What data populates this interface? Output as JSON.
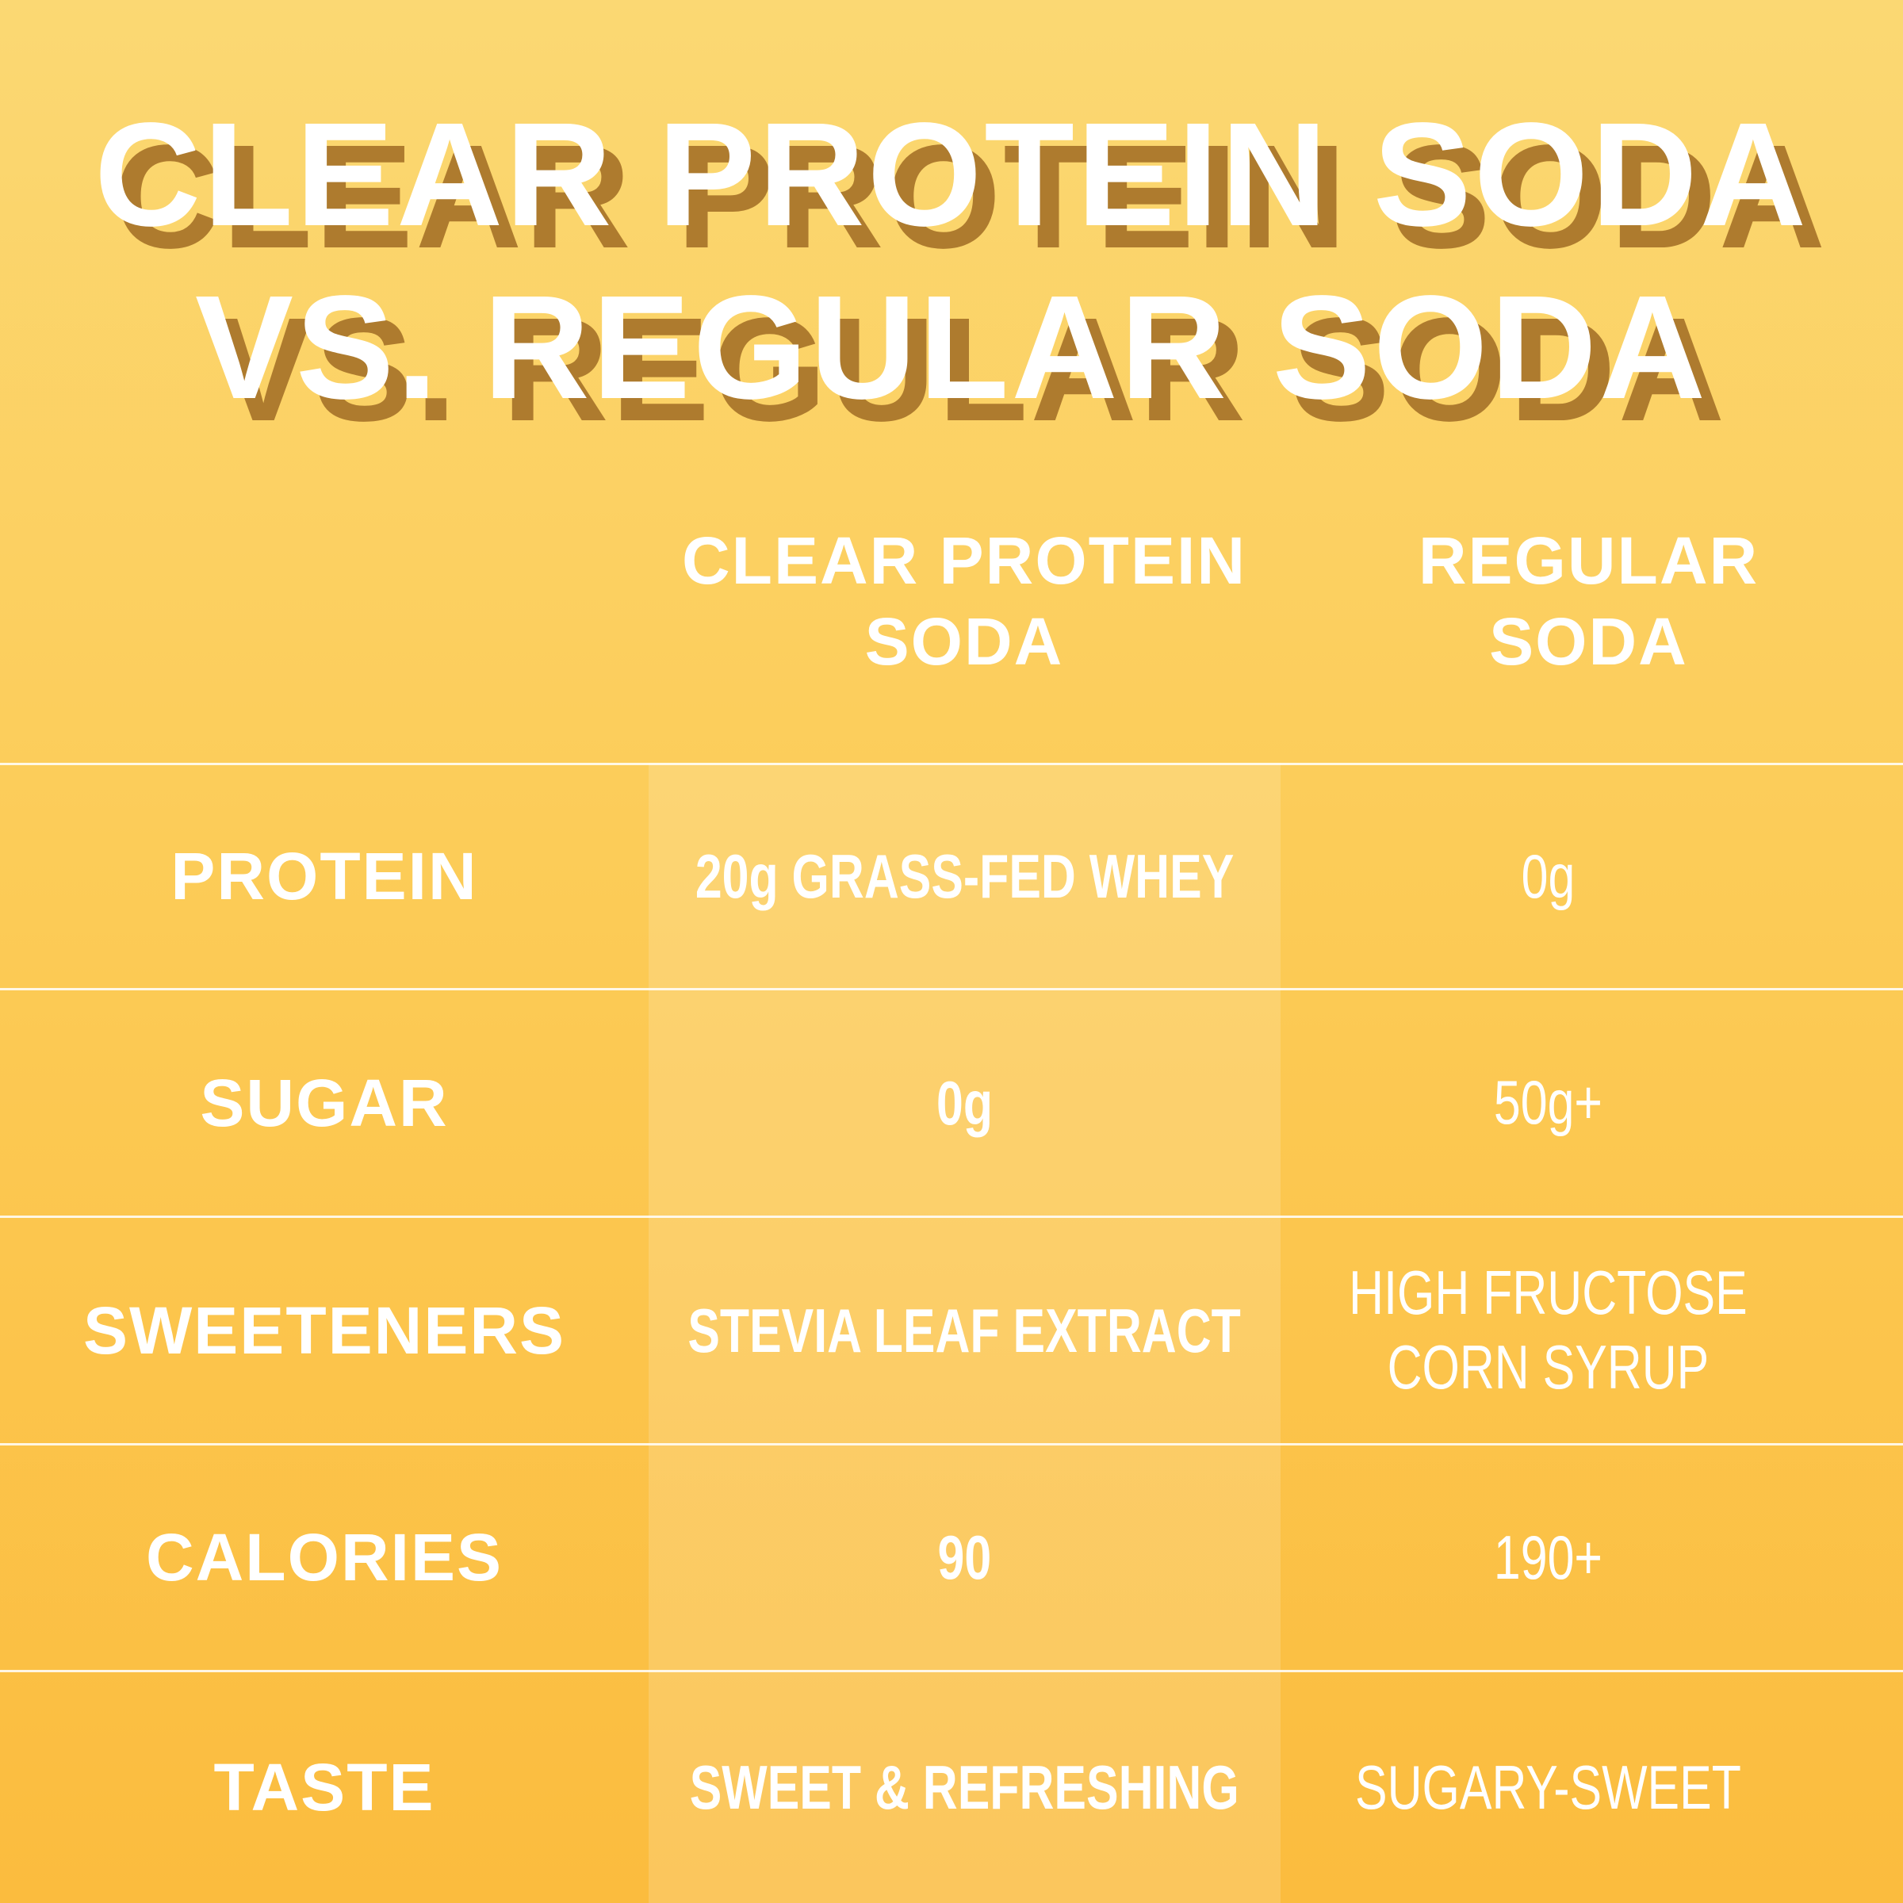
{
  "content": {
    "title": {
      "line1": "CLEAR PROTEIN SODA",
      "line2": "VS. REGULAR SODA"
    },
    "columns": {
      "clear": {
        "line1": "CLEAR PROTEIN",
        "line2": "SODA"
      },
      "regular": {
        "line1": "REGULAR",
        "line2": "SODA"
      }
    },
    "rows": [
      {
        "label": "PROTEIN",
        "clear": "20g GRASS-FED WHEY",
        "regular": "0g"
      },
      {
        "label": "SUGAR",
        "clear": "0g",
        "regular": "50g+"
      },
      {
        "label": "SWEETENERS",
        "clear": "STEVIA LEAF EXTRACT",
        "regular": "HIGH FRUCTOSE CORN SYRUP"
      },
      {
        "label": "CALORIES",
        "clear": "90",
        "regular": "190+"
      },
      {
        "label": "TASTE",
        "clear": "SWEET & REFRESHING",
        "regular": "SUGARY-SWEET"
      }
    ]
  },
  "chart_data": {
    "type": "table",
    "title": "CLEAR PROTEIN SODA VS. REGULAR SODA",
    "columns": [
      "CLEAR PROTEIN SODA",
      "REGULAR SODA"
    ],
    "row_labels": [
      "PROTEIN",
      "SUGAR",
      "SWEETENERS",
      "CALORIES",
      "TASTE"
    ],
    "cells": [
      [
        "20g GRASS-FED WHEY",
        "0g"
      ],
      [
        "0g",
        "50g+"
      ],
      [
        "STEVIA LEAF EXTRACT",
        "HIGH FRUCTOSE CORN SYRUP"
      ],
      [
        "90",
        "190+"
      ],
      [
        "SWEET & REFRESHING",
        "SUGARY-SWEET"
      ]
    ]
  },
  "colors": {
    "background_top": "#FBD873",
    "background_bottom": "#FBBC3E",
    "highlight_band": "rgba(255,255,255,0.16)",
    "divider": "rgba(255,255,255,0.85)",
    "title_shadow": "#AE7B2E",
    "text": "#FFFFFF"
  }
}
